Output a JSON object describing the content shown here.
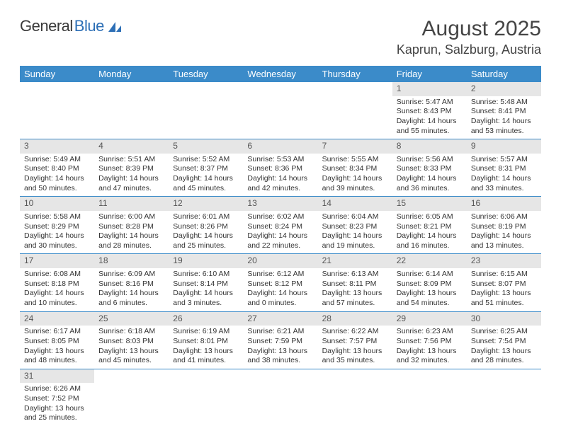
{
  "logo": {
    "word1": "General",
    "word2": "Blue"
  },
  "title": "August 2025",
  "location": "Kaprun, Salzburg, Austria",
  "colors": {
    "header_bg": "#3b8bc9",
    "header_fg": "#ffffff",
    "daynum_bg": "#e6e6e6",
    "row_border": "#3b8bc9",
    "logo_blue": "#2d6fb6",
    "text": "#333333"
  },
  "typography": {
    "title_fontsize": 30,
    "location_fontsize": 18,
    "dayheader_fontsize": 13,
    "cell_fontsize": 10.5
  },
  "day_headers": [
    "Sunday",
    "Monday",
    "Tuesday",
    "Wednesday",
    "Thursday",
    "Friday",
    "Saturday"
  ],
  "weeks": [
    [
      null,
      null,
      null,
      null,
      null,
      {
        "n": "1",
        "sunrise": "Sunrise: 5:47 AM",
        "sunset": "Sunset: 8:43 PM",
        "daylight": "Daylight: 14 hours and 55 minutes."
      },
      {
        "n": "2",
        "sunrise": "Sunrise: 5:48 AM",
        "sunset": "Sunset: 8:41 PM",
        "daylight": "Daylight: 14 hours and 53 minutes."
      }
    ],
    [
      {
        "n": "3",
        "sunrise": "Sunrise: 5:49 AM",
        "sunset": "Sunset: 8:40 PM",
        "daylight": "Daylight: 14 hours and 50 minutes."
      },
      {
        "n": "4",
        "sunrise": "Sunrise: 5:51 AM",
        "sunset": "Sunset: 8:39 PM",
        "daylight": "Daylight: 14 hours and 47 minutes."
      },
      {
        "n": "5",
        "sunrise": "Sunrise: 5:52 AM",
        "sunset": "Sunset: 8:37 PM",
        "daylight": "Daylight: 14 hours and 45 minutes."
      },
      {
        "n": "6",
        "sunrise": "Sunrise: 5:53 AM",
        "sunset": "Sunset: 8:36 PM",
        "daylight": "Daylight: 14 hours and 42 minutes."
      },
      {
        "n": "7",
        "sunrise": "Sunrise: 5:55 AM",
        "sunset": "Sunset: 8:34 PM",
        "daylight": "Daylight: 14 hours and 39 minutes."
      },
      {
        "n": "8",
        "sunrise": "Sunrise: 5:56 AM",
        "sunset": "Sunset: 8:33 PM",
        "daylight": "Daylight: 14 hours and 36 minutes."
      },
      {
        "n": "9",
        "sunrise": "Sunrise: 5:57 AM",
        "sunset": "Sunset: 8:31 PM",
        "daylight": "Daylight: 14 hours and 33 minutes."
      }
    ],
    [
      {
        "n": "10",
        "sunrise": "Sunrise: 5:58 AM",
        "sunset": "Sunset: 8:29 PM",
        "daylight": "Daylight: 14 hours and 30 minutes."
      },
      {
        "n": "11",
        "sunrise": "Sunrise: 6:00 AM",
        "sunset": "Sunset: 8:28 PM",
        "daylight": "Daylight: 14 hours and 28 minutes."
      },
      {
        "n": "12",
        "sunrise": "Sunrise: 6:01 AM",
        "sunset": "Sunset: 8:26 PM",
        "daylight": "Daylight: 14 hours and 25 minutes."
      },
      {
        "n": "13",
        "sunrise": "Sunrise: 6:02 AM",
        "sunset": "Sunset: 8:24 PM",
        "daylight": "Daylight: 14 hours and 22 minutes."
      },
      {
        "n": "14",
        "sunrise": "Sunrise: 6:04 AM",
        "sunset": "Sunset: 8:23 PM",
        "daylight": "Daylight: 14 hours and 19 minutes."
      },
      {
        "n": "15",
        "sunrise": "Sunrise: 6:05 AM",
        "sunset": "Sunset: 8:21 PM",
        "daylight": "Daylight: 14 hours and 16 minutes."
      },
      {
        "n": "16",
        "sunrise": "Sunrise: 6:06 AM",
        "sunset": "Sunset: 8:19 PM",
        "daylight": "Daylight: 14 hours and 13 minutes."
      }
    ],
    [
      {
        "n": "17",
        "sunrise": "Sunrise: 6:08 AM",
        "sunset": "Sunset: 8:18 PM",
        "daylight": "Daylight: 14 hours and 10 minutes."
      },
      {
        "n": "18",
        "sunrise": "Sunrise: 6:09 AM",
        "sunset": "Sunset: 8:16 PM",
        "daylight": "Daylight: 14 hours and 6 minutes."
      },
      {
        "n": "19",
        "sunrise": "Sunrise: 6:10 AM",
        "sunset": "Sunset: 8:14 PM",
        "daylight": "Daylight: 14 hours and 3 minutes."
      },
      {
        "n": "20",
        "sunrise": "Sunrise: 6:12 AM",
        "sunset": "Sunset: 8:12 PM",
        "daylight": "Daylight: 14 hours and 0 minutes."
      },
      {
        "n": "21",
        "sunrise": "Sunrise: 6:13 AM",
        "sunset": "Sunset: 8:11 PM",
        "daylight": "Daylight: 13 hours and 57 minutes."
      },
      {
        "n": "22",
        "sunrise": "Sunrise: 6:14 AM",
        "sunset": "Sunset: 8:09 PM",
        "daylight": "Daylight: 13 hours and 54 minutes."
      },
      {
        "n": "23",
        "sunrise": "Sunrise: 6:15 AM",
        "sunset": "Sunset: 8:07 PM",
        "daylight": "Daylight: 13 hours and 51 minutes."
      }
    ],
    [
      {
        "n": "24",
        "sunrise": "Sunrise: 6:17 AM",
        "sunset": "Sunset: 8:05 PM",
        "daylight": "Daylight: 13 hours and 48 minutes."
      },
      {
        "n": "25",
        "sunrise": "Sunrise: 6:18 AM",
        "sunset": "Sunset: 8:03 PM",
        "daylight": "Daylight: 13 hours and 45 minutes."
      },
      {
        "n": "26",
        "sunrise": "Sunrise: 6:19 AM",
        "sunset": "Sunset: 8:01 PM",
        "daylight": "Daylight: 13 hours and 41 minutes."
      },
      {
        "n": "27",
        "sunrise": "Sunrise: 6:21 AM",
        "sunset": "Sunset: 7:59 PM",
        "daylight": "Daylight: 13 hours and 38 minutes."
      },
      {
        "n": "28",
        "sunrise": "Sunrise: 6:22 AM",
        "sunset": "Sunset: 7:57 PM",
        "daylight": "Daylight: 13 hours and 35 minutes."
      },
      {
        "n": "29",
        "sunrise": "Sunrise: 6:23 AM",
        "sunset": "Sunset: 7:56 PM",
        "daylight": "Daylight: 13 hours and 32 minutes."
      },
      {
        "n": "30",
        "sunrise": "Sunrise: 6:25 AM",
        "sunset": "Sunset: 7:54 PM",
        "daylight": "Daylight: 13 hours and 28 minutes."
      }
    ],
    [
      {
        "n": "31",
        "sunrise": "Sunrise: 6:26 AM",
        "sunset": "Sunset: 7:52 PM",
        "daylight": "Daylight: 13 hours and 25 minutes."
      },
      null,
      null,
      null,
      null,
      null,
      null
    ]
  ]
}
